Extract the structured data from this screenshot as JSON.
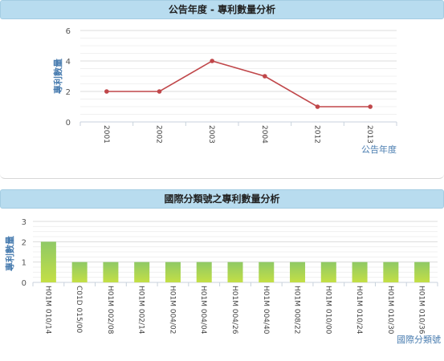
{
  "chart_data": [
    {
      "type": "line",
      "title": "公告年度 - 專利數量分析",
      "xlabel": "公告年度",
      "ylabel": "專利數量",
      "categories": [
        "2001",
        "2002",
        "2003",
        "2004",
        "2012",
        "2013"
      ],
      "values": [
        2,
        2,
        4,
        3,
        1,
        1
      ],
      "ylim": [
        0,
        6
      ],
      "yticks": [
        0,
        2,
        4,
        6
      ],
      "grid": true,
      "color": "#c0474a"
    },
    {
      "type": "bar",
      "title": "國際分類號之專利數量分析",
      "xlabel": "國際分類號",
      "ylabel": "專利數量",
      "categories": [
        "H01M 010/14",
        "C01D 015/00",
        "H01M 002/08",
        "H01M 002/14",
        "H01M 004/02",
        "H01M 004/04",
        "H01M 004/26",
        "H01M 004/40",
        "H01M 008/22",
        "H01M 010/00",
        "H01M 010/24",
        "H01M 010/30",
        "H01M 010/36"
      ],
      "values": [
        2,
        1,
        1,
        1,
        1,
        1,
        1,
        1,
        1,
        1,
        1,
        1,
        1
      ],
      "ylim": [
        0,
        3
      ],
      "yticks": [
        0,
        1,
        2,
        3
      ],
      "grid": true,
      "color_top": "#8fc965",
      "color_bottom": "#c4df45"
    }
  ]
}
